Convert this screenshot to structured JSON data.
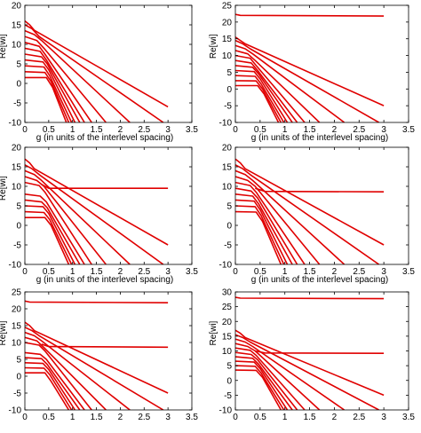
{
  "colors": {
    "line": "#e00000",
    "axis": "#000000",
    "background": "#ffffff"
  },
  "chart_data": [
    {
      "type": "line",
      "panel": "top-left",
      "xlabel": "g (in units of the interlevel spacing)",
      "ylabel": "Re[wi]",
      "xlim": [
        0,
        3.5
      ],
      "ylim": [
        -10,
        20
      ],
      "xticks": [
        "0",
        "0.5",
        "1",
        "1.5",
        "2",
        "2.5",
        "3",
        "3.5"
      ],
      "yticks": [
        "-10",
        "-5",
        "0",
        "5",
        "10",
        "15",
        "20"
      ],
      "series": [
        {
          "x": [
            0,
            0.1,
            0.2,
            3.0
          ],
          "y": [
            16,
            15,
            13.6,
            -6
          ]
        },
        {
          "x": [
            0,
            0.15,
            0.3,
            2.9
          ],
          "y": [
            15,
            14,
            12,
            -10
          ]
        },
        {
          "x": [
            0,
            0.2,
            0.35,
            2.2
          ],
          "y": [
            13.5,
            12.5,
            11,
            -10
          ]
        },
        {
          "x": [
            0,
            0.25,
            0.4,
            1.7
          ],
          "y": [
            12,
            11,
            9,
            -10
          ]
        },
        {
          "x": [
            0,
            0.3,
            0.42,
            1.4
          ],
          "y": [
            10.5,
            9.5,
            7.5,
            -10
          ]
        },
        {
          "x": [
            0,
            0.32,
            0.45,
            1.25
          ],
          "y": [
            9,
            8.2,
            6,
            -10
          ]
        },
        {
          "x": [
            0,
            0.35,
            0.47,
            1.15
          ],
          "y": [
            7.5,
            6.8,
            5,
            -10
          ]
        },
        {
          "x": [
            0,
            0.38,
            0.5,
            1.05
          ],
          "y": [
            6,
            5.5,
            3.5,
            -10
          ]
        },
        {
          "x": [
            0,
            0.4,
            0.52,
            0.98
          ],
          "y": [
            4.5,
            4.2,
            2,
            -10
          ]
        },
        {
          "x": [
            0,
            0.42,
            0.55,
            0.92
          ],
          "y": [
            3,
            2.8,
            0.5,
            -10
          ]
        },
        {
          "x": [
            0,
            0.45,
            0.58,
            0.87
          ],
          "y": [
            1.5,
            1.5,
            -1,
            -10
          ]
        }
      ]
    },
    {
      "type": "line",
      "panel": "top-right",
      "xlabel": "g (in units of the interlevel spacing)",
      "ylabel": "Re[wi]",
      "xlim": [
        0,
        3.5
      ],
      "ylim": [
        -10,
        25
      ],
      "xticks": [
        "0",
        "0.5",
        "1",
        "1.5",
        "2",
        "2.5",
        "3",
        "3.5"
      ],
      "yticks": [
        "-10",
        "-5",
        "0",
        "5",
        "10",
        "15",
        "20",
        "25"
      ],
      "series": [
        {
          "x": [
            0,
            0.1,
            3.0
          ],
          "y": [
            22.3,
            22,
            21.8
          ]
        },
        {
          "x": [
            0,
            0.1,
            0.2,
            3.0
          ],
          "y": [
            15.5,
            14.5,
            13.5,
            -5
          ]
        },
        {
          "x": [
            0,
            0.15,
            0.3,
            2.9
          ],
          "y": [
            14.5,
            13.5,
            12,
            -10
          ]
        },
        {
          "x": [
            0,
            0.2,
            0.35,
            2.2
          ],
          "y": [
            13,
            12,
            10.5,
            -10
          ]
        },
        {
          "x": [
            0,
            0.25,
            0.4,
            1.7
          ],
          "y": [
            11.5,
            10.5,
            8.5,
            -10
          ]
        },
        {
          "x": [
            0,
            0.3,
            0.42,
            1.4
          ],
          "y": [
            10,
            9.2,
            7,
            -10
          ]
        },
        {
          "x": [
            0,
            0.32,
            0.45,
            1.25
          ],
          "y": [
            8.5,
            7.8,
            5.5,
            -10
          ]
        },
        {
          "x": [
            0,
            0.35,
            0.47,
            1.15
          ],
          "y": [
            7,
            6.5,
            4.5,
            -10
          ]
        },
        {
          "x": [
            0,
            0.38,
            0.5,
            1.05
          ],
          "y": [
            5.5,
            5.2,
            3,
            -10
          ]
        },
        {
          "x": [
            0,
            0.4,
            0.52,
            0.98
          ],
          "y": [
            4,
            3.8,
            1.5,
            -10
          ]
        },
        {
          "x": [
            0,
            0.42,
            0.55,
            0.92
          ],
          "y": [
            2.5,
            2.4,
            0,
            -10
          ]
        },
        {
          "x": [
            0,
            0.45,
            0.58,
            0.87
          ],
          "y": [
            1,
            1,
            -1.5,
            -10
          ]
        }
      ]
    },
    {
      "type": "line",
      "panel": "middle-left",
      "xlabel": "g (in units of the interlevel spacing)",
      "ylabel": "Re[wi]",
      "xlim": [
        0,
        3.5
      ],
      "ylim": [
        -10,
        20
      ],
      "xticks": [
        "0",
        "0.5",
        "1",
        "1.5",
        "2",
        "2.5",
        "3",
        "3.5"
      ],
      "yticks": [
        "-10",
        "-5",
        "0",
        "5",
        "10",
        "15",
        "20"
      ],
      "series": [
        {
          "x": [
            0.35,
            0.5,
            3.0
          ],
          "y": [
            10.5,
            9.5,
            9.5
          ]
        },
        {
          "x": [
            0,
            0.1,
            0.2,
            3.0
          ],
          "y": [
            17,
            16,
            14.5,
            -5
          ]
        },
        {
          "x": [
            0,
            0.15,
            0.3,
            2.9
          ],
          "y": [
            15.5,
            14.5,
            13,
            -10
          ]
        },
        {
          "x": [
            0,
            0.2,
            0.35,
            2.2
          ],
          "y": [
            14,
            13,
            11.5,
            -10
          ]
        },
        {
          "x": [
            0,
            0.25,
            0.4,
            1.7
          ],
          "y": [
            12.5,
            11.5,
            10,
            -10
          ]
        },
        {
          "x": [
            0,
            0.3,
            0.42,
            1.4
          ],
          "y": [
            11,
            10.2,
            8.5,
            -10
          ]
        },
        {
          "x": [
            0,
            0.32,
            0.45,
            1.25
          ],
          "y": [
            8,
            7.5,
            6,
            -10
          ]
        },
        {
          "x": [
            0,
            0.35,
            0.47,
            1.15
          ],
          "y": [
            6.5,
            6,
            4.5,
            -10
          ]
        },
        {
          "x": [
            0,
            0.38,
            0.5,
            1.05
          ],
          "y": [
            5,
            4.8,
            3,
            -10
          ]
        },
        {
          "x": [
            0,
            0.4,
            0.52,
            0.98
          ],
          "y": [
            3.5,
            3.3,
            1.5,
            -10
          ]
        },
        {
          "x": [
            0,
            0.42,
            0.55,
            0.92
          ],
          "y": [
            2,
            2,
            0,
            -10
          ]
        }
      ]
    },
    {
      "type": "line",
      "panel": "middle-right",
      "xlabel": "g (in units of the interlevel spacing)",
      "ylabel": "",
      "xlim": [
        0,
        3.5
      ],
      "ylim": [
        -10,
        20
      ],
      "xticks": [
        "0",
        "0.5",
        "1",
        "1.5",
        "2",
        "2.5",
        "3",
        "3.5"
      ],
      "yticks": [
        "-10",
        "-5",
        "0",
        "5",
        "10",
        "15",
        "20"
      ],
      "series": [
        {
          "x": [
            0.4,
            0.6,
            3.0
          ],
          "y": [
            9.5,
            8.7,
            8.6
          ]
        },
        {
          "x": [
            0,
            0.1,
            0.2,
            3.0
          ],
          "y": [
            17,
            16,
            14.5,
            -5
          ]
        },
        {
          "x": [
            0,
            0.15,
            0.3,
            2.9
          ],
          "y": [
            15.5,
            14.5,
            13,
            -10
          ]
        },
        {
          "x": [
            0,
            0.2,
            0.35,
            2.2
          ],
          "y": [
            14,
            13,
            11.5,
            -10
          ]
        },
        {
          "x": [
            0,
            0.25,
            0.4,
            1.7
          ],
          "y": [
            12.5,
            11.5,
            10,
            -10
          ]
        },
        {
          "x": [
            0,
            0.3,
            0.42,
            1.4
          ],
          "y": [
            11,
            10.2,
            8.5,
            -10
          ]
        },
        {
          "x": [
            0,
            0.32,
            0.45,
            1.25
          ],
          "y": [
            9.5,
            8.8,
            7,
            -10
          ]
        },
        {
          "x": [
            0,
            0.35,
            0.47,
            1.15
          ],
          "y": [
            8,
            7.5,
            5.5,
            -10
          ]
        },
        {
          "x": [
            0,
            0.38,
            0.5,
            1.05
          ],
          "y": [
            6.5,
            6.2,
            4,
            -10
          ]
        },
        {
          "x": [
            0,
            0.4,
            0.52,
            0.98
          ],
          "y": [
            5,
            4.8,
            2.5,
            -10
          ]
        },
        {
          "x": [
            0,
            0.42,
            0.55,
            0.92
          ],
          "y": [
            3.5,
            3.4,
            1,
            -10
          ]
        }
      ]
    },
    {
      "type": "line",
      "panel": "bottom-left",
      "xlabel": "",
      "ylabel": "Re[wi]",
      "xlim": [
        0,
        3.5
      ],
      "ylim": [
        -10,
        25
      ],
      "xticks": [
        "0",
        "0.5",
        "1",
        "1.5",
        "2",
        "2.5",
        "3",
        "3.5"
      ],
      "yticks": [
        "-10",
        "-5",
        "0",
        "5",
        "10",
        "15",
        "20",
        "25"
      ],
      "series": [
        {
          "x": [
            0,
            0.1,
            3.0
          ],
          "y": [
            22.3,
            22,
            21.8
          ]
        },
        {
          "x": [
            0.35,
            0.5,
            3.0
          ],
          "y": [
            9.5,
            8.8,
            8.6
          ]
        },
        {
          "x": [
            0,
            0.1,
            0.2,
            3.0
          ],
          "y": [
            16,
            15,
            13.5,
            -5
          ]
        },
        {
          "x": [
            0,
            0.15,
            0.3,
            2.9
          ],
          "y": [
            14.5,
            13.5,
            12,
            -10
          ]
        },
        {
          "x": [
            0,
            0.2,
            0.35,
            2.2
          ],
          "y": [
            13,
            12,
            10.5,
            -10
          ]
        },
        {
          "x": [
            0,
            0.25,
            0.4,
            1.7
          ],
          "y": [
            11.5,
            10.5,
            8.5,
            -10
          ]
        },
        {
          "x": [
            0,
            0.3,
            0.42,
            1.4
          ],
          "y": [
            10,
            9.2,
            7.5,
            -10
          ]
        },
        {
          "x": [
            0,
            0.32,
            0.45,
            1.25
          ],
          "y": [
            7,
            6.5,
            5,
            -10
          ]
        },
        {
          "x": [
            0,
            0.35,
            0.47,
            1.15
          ],
          "y": [
            5.5,
            5.2,
            3.5,
            -10
          ]
        },
        {
          "x": [
            0,
            0.38,
            0.5,
            1.05
          ],
          "y": [
            4,
            3.8,
            2,
            -10
          ]
        },
        {
          "x": [
            0,
            0.4,
            0.52,
            0.98
          ],
          "y": [
            2.5,
            2.4,
            0.5,
            -10
          ]
        },
        {
          "x": [
            0,
            0.42,
            0.55,
            0.92
          ],
          "y": [
            1,
            1,
            -1.5,
            -10
          ]
        }
      ]
    },
    {
      "type": "line",
      "panel": "bottom-right",
      "xlabel": "",
      "ylabel": "Re[wi]",
      "xlim": [
        0,
        3.5
      ],
      "ylim": [
        -10,
        30
      ],
      "xticks": [
        "0",
        "0.5",
        "1",
        "1.5",
        "2",
        "2.5",
        "3",
        "3.5"
      ],
      "yticks": [
        "-10",
        "-5",
        "0",
        "5",
        "10",
        "15",
        "20",
        "25",
        "30"
      ],
      "series": [
        {
          "x": [
            0,
            0.1,
            3.0
          ],
          "y": [
            28.2,
            27.9,
            27.7
          ]
        },
        {
          "x": [
            0.4,
            0.6,
            3.0
          ],
          "y": [
            10,
            9.3,
            9.2
          ]
        },
        {
          "x": [
            0,
            0.1,
            0.2,
            3.0
          ],
          "y": [
            17,
            16,
            14.5,
            -5
          ]
        },
        {
          "x": [
            0,
            0.15,
            0.3,
            2.9
          ],
          "y": [
            15.5,
            14.5,
            13,
            -10
          ]
        },
        {
          "x": [
            0,
            0.2,
            0.35,
            2.2
          ],
          "y": [
            14,
            13,
            11.5,
            -10
          ]
        },
        {
          "x": [
            0,
            0.25,
            0.4,
            1.7
          ],
          "y": [
            12.5,
            11.5,
            10,
            -10
          ]
        },
        {
          "x": [
            0,
            0.3,
            0.42,
            1.4
          ],
          "y": [
            11,
            10.2,
            8.5,
            -10
          ]
        },
        {
          "x": [
            0,
            0.32,
            0.45,
            1.25
          ],
          "y": [
            9.5,
            8.8,
            7,
            -10
          ]
        },
        {
          "x": [
            0,
            0.35,
            0.47,
            1.15
          ],
          "y": [
            8,
            7.5,
            5.5,
            -10
          ]
        },
        {
          "x": [
            0,
            0.38,
            0.5,
            1.05
          ],
          "y": [
            6.5,
            6.2,
            4,
            -10
          ]
        },
        {
          "x": [
            0,
            0.4,
            0.52,
            0.98
          ],
          "y": [
            5,
            4.8,
            2.5,
            -10
          ]
        },
        {
          "x": [
            0,
            0.42,
            0.55,
            0.92
          ],
          "y": [
            3.5,
            3.4,
            1,
            -10
          ]
        }
      ]
    }
  ]
}
